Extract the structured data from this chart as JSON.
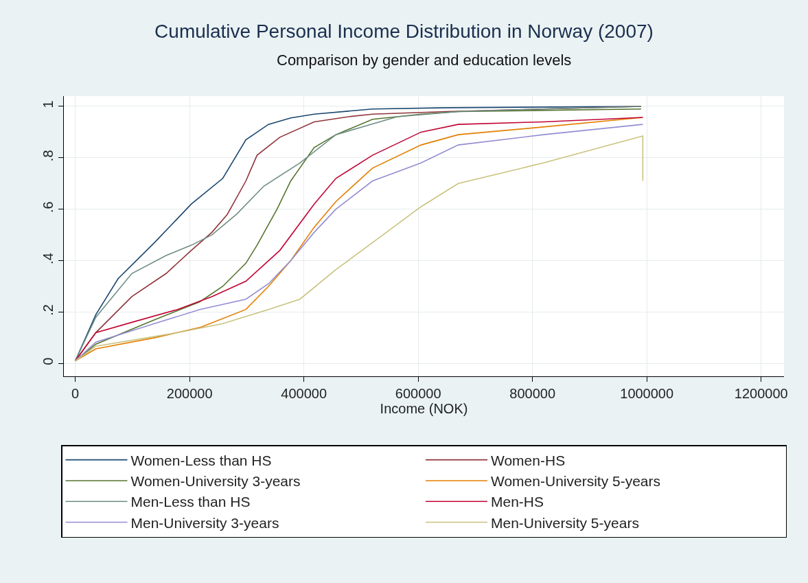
{
  "chart_data": {
    "type": "line",
    "title": "Cumulative Personal Income Distribution in Norway (2007)",
    "subtitle": "Comparison by gender and education levels",
    "xlabel": "Income (NOK)",
    "xlim": [
      -20000,
      1240000
    ],
    "xticks": [
      0,
      200000,
      400000,
      600000,
      800000,
      1000000,
      1200000
    ],
    "ylim": [
      -0.05,
      1.04
    ],
    "yticks": [
      0,
      {
        "value": 0.2,
        "label": ".2"
      },
      {
        "value": 0.4,
        "label": ".4"
      },
      {
        "value": 0.6,
        "label": ".6"
      },
      {
        "value": 0.8,
        "label": ".8"
      },
      1
    ],
    "grid": true,
    "legend": "bottom",
    "series": [
      {
        "name": "Women-Less than HS",
        "color": "#1a476f",
        "x": [
          0,
          36000,
          75000,
          138500,
          203000,
          258000,
          298500,
          338000,
          377000,
          418000,
          520000,
          648000,
          990000
        ],
        "values": [
          0.01,
          0.19,
          0.33,
          0.47,
          0.62,
          0.72,
          0.87,
          0.93,
          0.955,
          0.97,
          0.99,
          0.995,
          1
        ]
      },
      {
        "name": "Women-HS",
        "color": "#90353b",
        "x": [
          0,
          36000,
          99000,
          159000,
          203000,
          239000,
          266000,
          298500,
          318000,
          358000,
          418000,
          478000,
          520000,
          648000,
          819000,
          990000
        ],
        "values": [
          0.01,
          0.12,
          0.26,
          0.35,
          0.44,
          0.51,
          0.58,
          0.71,
          0.81,
          0.88,
          0.94,
          0.96,
          0.97,
          0.98,
          0.99,
          1
        ]
      },
      {
        "name": "Women-University 3-years",
        "color": "#55752f",
        "x": [
          0,
          36000,
          138500,
          218000,
          258000,
          298500,
          318000,
          353000,
          377000,
          418000,
          456000,
          520000,
          605000,
          670000,
          990000
        ],
        "values": [
          0.01,
          0.075,
          0.17,
          0.24,
          0.3,
          0.39,
          0.46,
          0.6,
          0.71,
          0.84,
          0.89,
          0.95,
          0.97,
          0.98,
          0.99
        ]
      },
      {
        "name": "Women-University 5-years",
        "color": "#e37e00",
        "x": [
          0,
          36000,
          138500,
          218000,
          298500,
          338000,
          377000,
          418000,
          456000,
          520000,
          605000,
          670000,
          819000,
          993000
        ],
        "values": [
          0.01,
          0.057,
          0.1,
          0.14,
          0.21,
          0.3,
          0.4,
          0.53,
          0.63,
          0.76,
          0.85,
          0.89,
          0.92,
          0.957
        ]
      },
      {
        "name": "Men-Less than HS",
        "color": "#6e8e84",
        "x": [
          0,
          36000,
          99000,
          159000,
          203000,
          239000,
          282000,
          330000,
          393000,
          456000,
          563000,
          670000,
          819000,
          990000
        ],
        "values": [
          0.01,
          0.18,
          0.35,
          0.42,
          0.46,
          0.5,
          0.58,
          0.69,
          0.78,
          0.89,
          0.96,
          0.98,
          0.99,
          1
        ]
      },
      {
        "name": "Men-HS",
        "color": "#c10534",
        "x": [
          0,
          36000,
          99000,
          179000,
          239000,
          298500,
          358000,
          418000,
          456000,
          520000,
          605000,
          670000,
          819000,
          993000
        ],
        "values": [
          0.01,
          0.12,
          0.16,
          0.21,
          0.26,
          0.32,
          0.44,
          0.62,
          0.72,
          0.81,
          0.9,
          0.93,
          0.94,
          0.957
        ]
      },
      {
        "name": "Men-University 3-years",
        "color": "#938dd2",
        "x": [
          0,
          36000,
          138500,
          218000,
          298500,
          338000,
          377000,
          418000,
          456000,
          520000,
          605000,
          670000,
          819000,
          993000
        ],
        "values": [
          0.01,
          0.083,
          0.155,
          0.21,
          0.25,
          0.31,
          0.4,
          0.51,
          0.6,
          0.71,
          0.78,
          0.85,
          0.89,
          0.93
        ]
      },
      {
        "name": "Men-University 5-years",
        "color": "#cac27e",
        "x": [
          0,
          36000,
          179000,
          258000,
          338000,
          393000,
          456000,
          520000,
          605000,
          670000,
          819000,
          993000,
          993000
        ],
        "values": [
          0.01,
          0.067,
          0.12,
          0.155,
          0.21,
          0.25,
          0.365,
          0.47,
          0.61,
          0.7,
          0.78,
          0.885,
          0.71
        ]
      }
    ]
  }
}
